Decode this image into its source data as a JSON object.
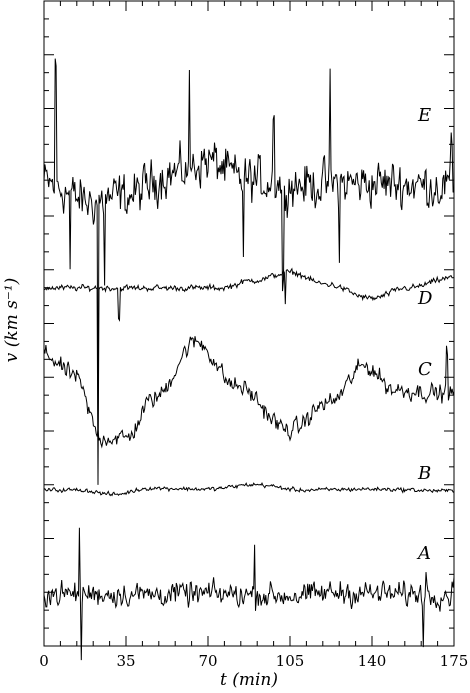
{
  "chart_data": {
    "type": "line",
    "xlabel": "t (min)",
    "ylabel": "v (km s⁻¹)",
    "xlim": [
      0,
      175
    ],
    "x_ticks": [
      0,
      35,
      70,
      105,
      140,
      175
    ],
    "y_ticks_labeled": false,
    "grid": false,
    "legend": "series labels placed at right end of each trace",
    "series": [
      {
        "name": "E",
        "spikes": [
          {
            "t": 5,
            "dir": "up",
            "extent": "large"
          },
          {
            "t": 11,
            "dir": "down",
            "extent": "medium"
          },
          {
            "t": 23,
            "dir": "down",
            "extent": "very-large"
          },
          {
            "t": 26,
            "dir": "down",
            "extent": "medium"
          },
          {
            "t": 62,
            "dir": "up",
            "extent": "medium"
          },
          {
            "t": 85,
            "dir": "down",
            "extent": "medium"
          },
          {
            "t": 98,
            "dir": "up",
            "extent": "medium"
          },
          {
            "t": 102,
            "dir": "down",
            "extent": "large"
          },
          {
            "t": 122,
            "dir": "up",
            "extent": "large"
          },
          {
            "t": 126,
            "dir": "down",
            "extent": "medium"
          },
          {
            "t": 174,
            "dir": "up",
            "extent": "small"
          }
        ],
        "trend": [
          [
            0,
            0.0
          ],
          [
            20,
            -0.6
          ],
          [
            35,
            -0.4
          ],
          [
            55,
            0.3
          ],
          [
            70,
            0.7
          ],
          [
            85,
            0.1
          ],
          [
            110,
            -0.05
          ],
          [
            140,
            0.0
          ],
          [
            175,
            -0.1
          ]
        ],
        "noise": "high"
      },
      {
        "name": "D",
        "spikes": [
          {
            "t": 23,
            "dir": "down",
            "extent": "very-large"
          },
          {
            "t": 32,
            "dir": "down",
            "extent": "small"
          },
          {
            "t": 103,
            "dir": "down",
            "extent": "small"
          }
        ],
        "trend": [
          [
            0,
            0.0
          ],
          [
            40,
            0.0
          ],
          [
            75,
            0.0
          ],
          [
            90,
            0.3
          ],
          [
            105,
            0.6
          ],
          [
            120,
            0.15
          ],
          [
            140,
            -0.4
          ],
          [
            155,
            0.0
          ],
          [
            175,
            0.4
          ]
        ],
        "noise": "low"
      },
      {
        "name": "C",
        "spikes": [
          {
            "t": 172,
            "dir": "up",
            "extent": "small"
          }
        ],
        "trend": [
          [
            0,
            0.9
          ],
          [
            12,
            0.4
          ],
          [
            25,
            -1.2
          ],
          [
            35,
            -1.2
          ],
          [
            47,
            -0.2
          ],
          [
            65,
            1.2
          ],
          [
            82,
            0.1
          ],
          [
            105,
            -1.0
          ],
          [
            122,
            -0.3
          ],
          [
            137,
            0.6
          ],
          [
            150,
            0.0
          ],
          [
            175,
            -0.1
          ]
        ],
        "noise": "medium"
      },
      {
        "name": "B",
        "spikes": [],
        "trend": [
          [
            0,
            0.0
          ],
          [
            15,
            0.0
          ],
          [
            30,
            -0.25
          ],
          [
            45,
            0.1
          ],
          [
            70,
            0.05
          ],
          [
            90,
            0.3
          ],
          [
            110,
            0.0
          ],
          [
            140,
            0.05
          ],
          [
            175,
            -0.05
          ]
        ],
        "noise": "low"
      },
      {
        "name": "A",
        "spikes": [
          {
            "t": 15,
            "dir": "up",
            "extent": "large"
          },
          {
            "t": 16,
            "dir": "down",
            "extent": "large"
          },
          {
            "t": 90,
            "dir": "up",
            "extent": "large"
          },
          {
            "t": 162,
            "dir": "down",
            "extent": "medium"
          },
          {
            "t": 163,
            "dir": "up",
            "extent": "small"
          },
          {
            "t": 175,
            "dir": "up",
            "extent": "small"
          }
        ],
        "trend": [
          [
            0,
            0.0
          ],
          [
            40,
            0.0
          ],
          [
            70,
            0.0
          ],
          [
            110,
            -0.1
          ],
          [
            125,
            0.1
          ],
          [
            150,
            0.0
          ],
          [
            175,
            0.0
          ]
        ],
        "noise": "high"
      }
    ]
  },
  "axes": {
    "x_label_text": "t (min)",
    "y_label_text": "v (km s⁻¹)"
  }
}
